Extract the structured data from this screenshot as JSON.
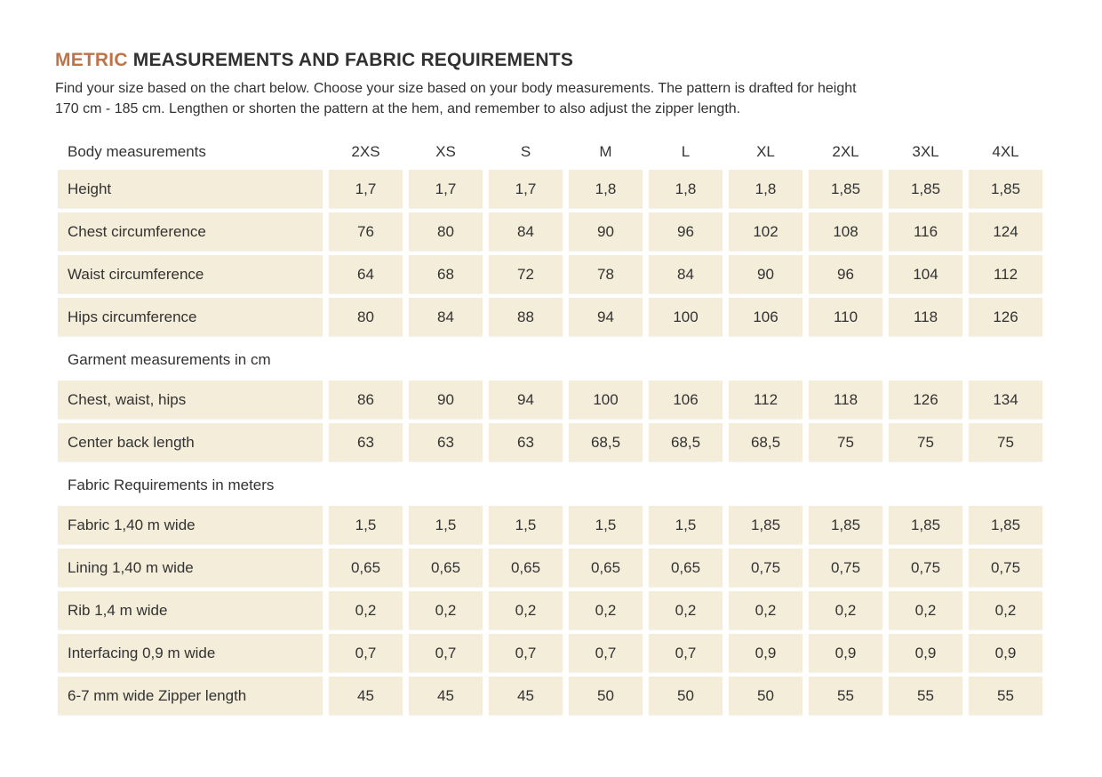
{
  "colors": {
    "accent": "#bf7348",
    "cell_background": "#f4edda",
    "text": "#2e2e2e",
    "page_background": "#ffffff"
  },
  "header": {
    "title_highlight": "METRIC",
    "title_rest": "MEASUREMENTS AND FABRIC REQUIREMENTS",
    "intro_lines": [
      "Find your size based on the chart below. Choose your size based on your body measurements. The pattern is drafted for height",
      "170 cm - 185 cm.  Lengthen or shorten the pattern at the hem, and remember to also adjust the zipper length."
    ]
  },
  "table": {
    "header_label": "Body measurements",
    "sizes": [
      "2XS",
      "XS",
      "S",
      "M",
      "L",
      "XL",
      "2XL",
      "3XL",
      "4XL"
    ],
    "sections": [
      {
        "heading": "",
        "rows": [
          {
            "label": "Height",
            "values": [
              "1,7",
              "1,7",
              "1,7",
              "1,8",
              "1,8",
              "1,8",
              "1,85",
              "1,85",
              "1,85"
            ]
          },
          {
            "label": "Chest circumference",
            "values": [
              "76",
              "80",
              "84",
              "90",
              "96",
              "102",
              "108",
              "116",
              "124"
            ]
          },
          {
            "label": "Waist circumference",
            "values": [
              "64",
              "68",
              "72",
              "78",
              "84",
              "90",
              "96",
              "104",
              "112"
            ]
          },
          {
            "label": "Hips circumference",
            "values": [
              "80",
              "84",
              "88",
              "94",
              "100",
              "106",
              "110",
              "118",
              "126"
            ]
          }
        ]
      },
      {
        "heading": "Garment measurements in cm",
        "rows": [
          {
            "label": "Chest, waist, hips",
            "values": [
              "86",
              "90",
              "94",
              "100",
              "106",
              "112",
              "118",
              "126",
              "134"
            ]
          },
          {
            "label": "Center back length",
            "values": [
              "63",
              "63",
              "63",
              "68,5",
              "68,5",
              "68,5",
              "75",
              "75",
              "75"
            ]
          }
        ]
      },
      {
        "heading": "Fabric Requirements in meters",
        "rows": [
          {
            "label": "Fabric 1,40 m wide",
            "values": [
              "1,5",
              "1,5",
              "1,5",
              "1,5",
              "1,5",
              "1,85",
              "1,85",
              "1,85",
              "1,85"
            ]
          },
          {
            "label": "Lining 1,40 m wide",
            "values": [
              "0,65",
              "0,65",
              "0,65",
              "0,65",
              "0,65",
              "0,75",
              "0,75",
              "0,75",
              "0,75"
            ]
          },
          {
            "label": "Rib 1,4 m wide",
            "values": [
              "0,2",
              "0,2",
              "0,2",
              "0,2",
              "0,2",
              "0,2",
              "0,2",
              "0,2",
              "0,2"
            ]
          },
          {
            "label": "Interfacing 0,9 m wide",
            "values": [
              "0,7",
              "0,7",
              "0,7",
              "0,7",
              "0,7",
              "0,9",
              "0,9",
              "0,9",
              "0,9"
            ]
          },
          {
            "label": "6-7 mm wide Zipper length",
            "values": [
              "45",
              "45",
              "45",
              "50",
              "50",
              "50",
              "55",
              "55",
              "55"
            ]
          }
        ]
      }
    ]
  }
}
